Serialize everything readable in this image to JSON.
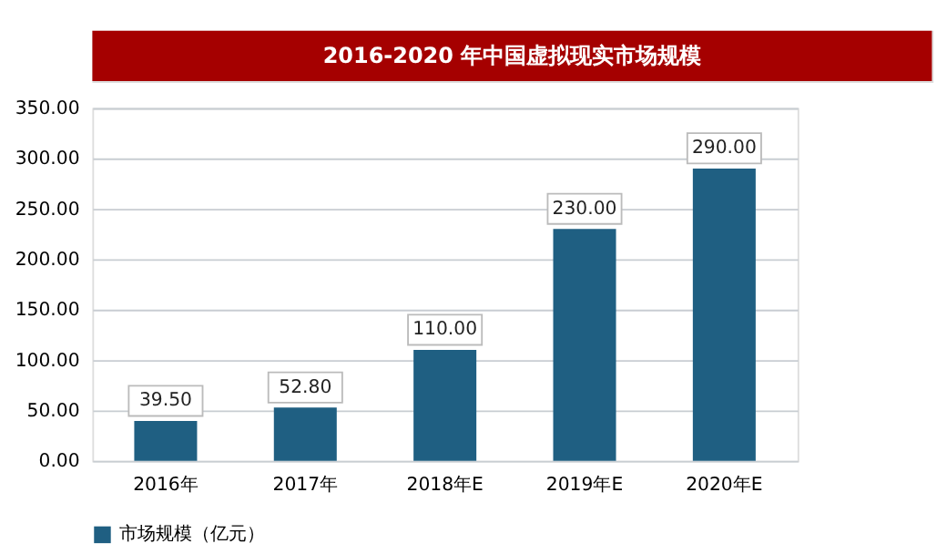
{
  "chart_data": {
    "type": "bar",
    "title": "2016-2020 年中国虚拟现实市场规模",
    "categories": [
      "2016年",
      "2017年",
      "2018年E",
      "2019年E",
      "2020年E"
    ],
    "series": [
      {
        "name": "市场规模（亿元）",
        "color": "#1f5f82",
        "values": [
          39.5,
          52.8,
          110,
          230,
          290
        ],
        "value_labels": [
          "39.50",
          "52.80",
          "110.00",
          "230.00",
          "290.00"
        ]
      }
    ],
    "ylim": [
      0,
      350
    ],
    "yticks": [
      {
        "value": 0,
        "label": "0.00"
      },
      {
        "value": 50,
        "label": "50.00"
      },
      {
        "value": 100,
        "label": "100.00"
      },
      {
        "value": 150,
        "label": "150.00"
      },
      {
        "value": 200,
        "label": "200.00"
      },
      {
        "value": 250,
        "label": "250.00"
      },
      {
        "value": 300,
        "label": "300.00"
      },
      {
        "value": 350,
        "label": "350.00"
      }
    ],
    "grid": "y",
    "legend": "bottom"
  }
}
